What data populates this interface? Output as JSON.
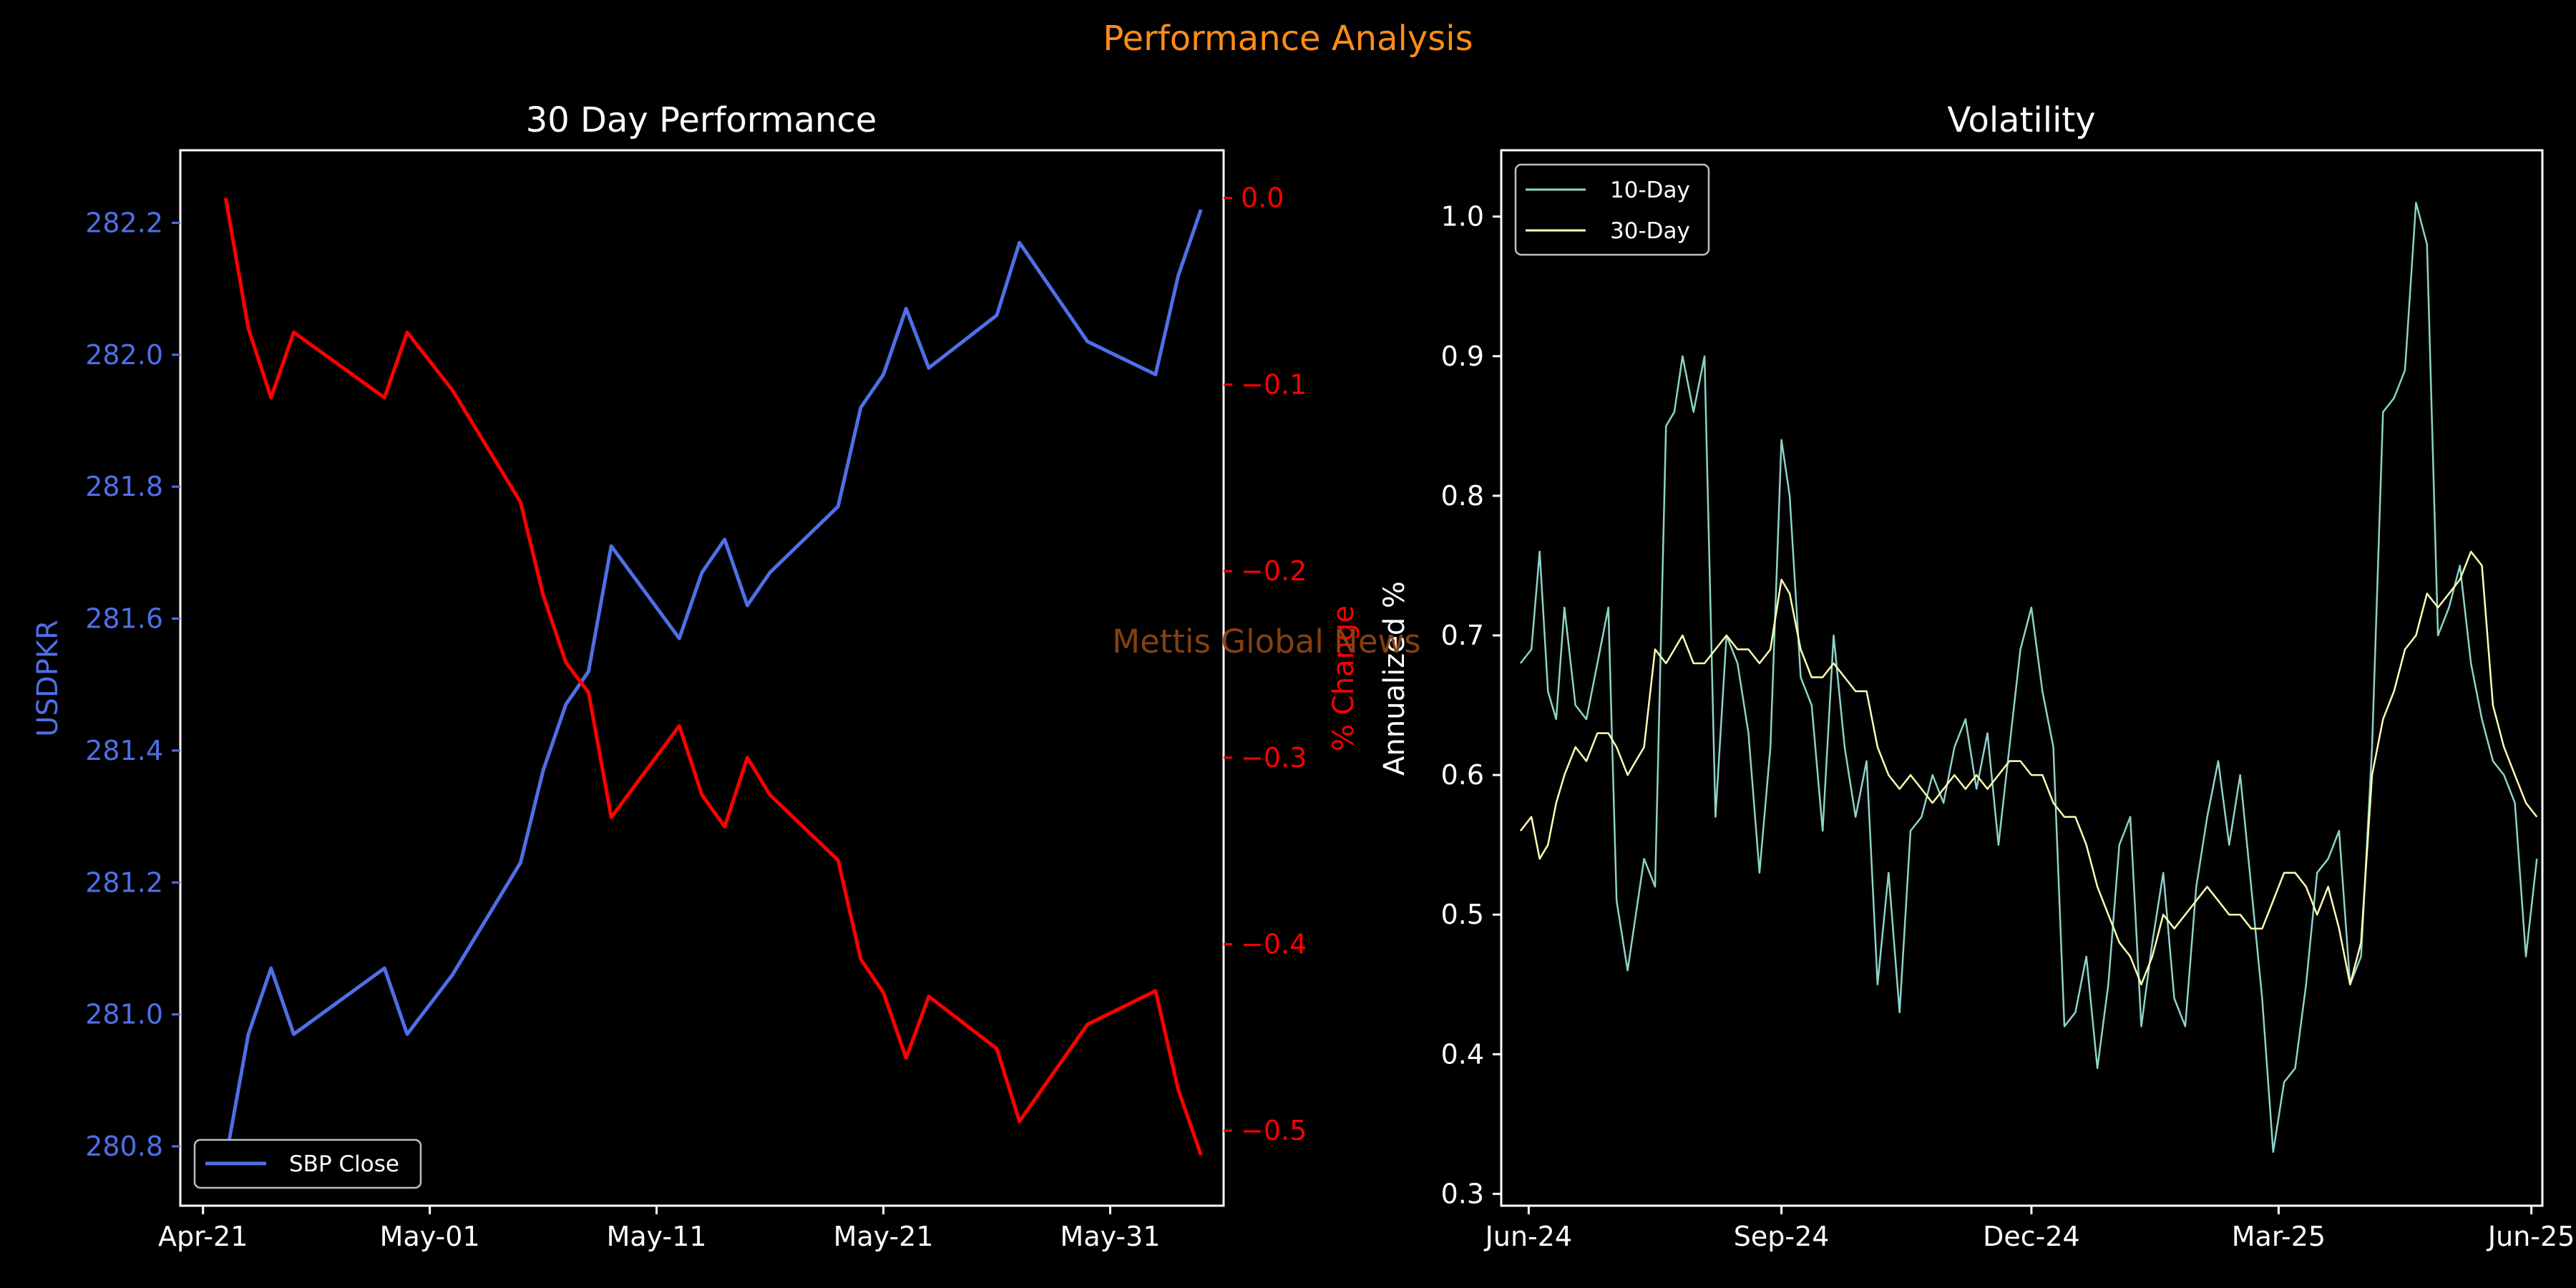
{
  "figure": {
    "title": "Performance Analysis",
    "watermark": "Mettis Global News"
  },
  "colors": {
    "blue": "#4f6fe6",
    "red": "#ff0000",
    "ten_day": "#8dd3c7",
    "thirty_day": "#ffffb3",
    "suptitle": "#ff8c1a",
    "watermark": "#8b4513"
  },
  "chart_data": [
    {
      "type": "line",
      "title": "30 Day Performance",
      "xlabel": "",
      "ylabel": "USDPKR",
      "y2label": "% Change",
      "xlim": [
        "2025-04-20",
        "2025-06-05"
      ],
      "ylim": [
        280.71,
        282.31
      ],
      "y2lim": [
        -0.5402,
        0.0256
      ],
      "x_ticks": [
        "Apr-21",
        "May-01",
        "May-11",
        "May-21",
        "May-31"
      ],
      "x_tick_dates": [
        "2025-04-21",
        "2025-05-01",
        "2025-05-11",
        "2025-05-21",
        "2025-05-31"
      ],
      "y_ticks": [
        "280.8",
        "281.0",
        "281.2",
        "281.4",
        "281.6",
        "281.8",
        "282.0",
        "282.2"
      ],
      "y2_ticks": [
        "0.0",
        "−0.1",
        "−0.2",
        "−0.3",
        "−0.4",
        "−0.5"
      ],
      "legend": {
        "location": "lower left",
        "entries": [
          "SBP Close"
        ]
      },
      "series": [
        {
          "name": "SBP Close",
          "axis": "left",
          "color": "#4f6fe6",
          "x": [
            "2025-04-22",
            "2025-04-23",
            "2025-04-24",
            "2025-04-25",
            "2025-04-29",
            "2025-04-30",
            "2025-05-02",
            "2025-05-05",
            "2025-05-06",
            "2025-05-07",
            "2025-05-08",
            "2025-05-09",
            "2025-05-12",
            "2025-05-13",
            "2025-05-14",
            "2025-05-15",
            "2025-05-16",
            "2025-05-19",
            "2025-05-20",
            "2025-05-21",
            "2025-05-22",
            "2025-05-23",
            "2025-05-26",
            "2025-05-27",
            "2025-05-30",
            "2025-06-02",
            "2025-06-03",
            "2025-06-04"
          ],
          "values": [
            280.78,
            280.97,
            281.07,
            280.97,
            281.07,
            280.97,
            281.06,
            281.23,
            281.37,
            281.47,
            281.52,
            281.71,
            281.57,
            281.67,
            281.72,
            281.62,
            281.67,
            281.77,
            281.92,
            281.97,
            282.07,
            281.98,
            282.06,
            282.17,
            282.02,
            281.97,
            282.12,
            282.22
          ]
        },
        {
          "name": "% Change",
          "axis": "right",
          "color": "#ff0000",
          "x": [
            "2025-04-22",
            "2025-04-23",
            "2025-04-24",
            "2025-04-25",
            "2025-04-29",
            "2025-04-30",
            "2025-05-02",
            "2025-05-05",
            "2025-05-06",
            "2025-05-07",
            "2025-05-08",
            "2025-05-09",
            "2025-05-12",
            "2025-05-13",
            "2025-05-14",
            "2025-05-15",
            "2025-05-16",
            "2025-05-19",
            "2025-05-20",
            "2025-05-21",
            "2025-05-22",
            "2025-05-23",
            "2025-05-26",
            "2025-05-27",
            "2025-05-30",
            "2025-06-02",
            "2025-06-03",
            "2025-06-04"
          ],
          "values": [
            0.0,
            -0.07,
            -0.107,
            -0.072,
            -0.107,
            -0.072,
            -0.103,
            -0.163,
            -0.213,
            -0.249,
            -0.265,
            -0.332,
            -0.283,
            -0.32,
            -0.337,
            -0.3,
            -0.32,
            -0.355,
            -0.408,
            -0.426,
            -0.461,
            -0.428,
            -0.456,
            -0.495,
            -0.443,
            -0.425,
            -0.478,
            -0.513
          ]
        }
      ]
    },
    {
      "type": "line",
      "title": "Volatility",
      "xlabel": "",
      "ylabel": "Annualized %",
      "xlim": [
        "2024-05-22",
        "2025-06-05"
      ],
      "ylim": [
        0.2915,
        1.0475
      ],
      "x_ticks": [
        "Jun-24",
        "Sep-24",
        "Dec-24",
        "Mar-25",
        "Jun-25"
      ],
      "x_tick_dates": [
        "2024-06-01",
        "2024-09-01",
        "2024-12-01",
        "2025-03-01",
        "2025-06-01"
      ],
      "y_ticks": [
        "0.3",
        "0.4",
        "0.5",
        "0.6",
        "0.7",
        "0.8",
        "0.9",
        "1.0"
      ],
      "legend": {
        "location": "upper left",
        "entries": [
          "10-Day",
          "30-Day"
        ]
      },
      "series": [
        {
          "name": "10-Day",
          "color": "#8dd3c7",
          "x": [
            "2024-05-29",
            "2024-06-02",
            "2024-06-05",
            "2024-06-08",
            "2024-06-11",
            "2024-06-14",
            "2024-06-18",
            "2024-06-22",
            "2024-06-26",
            "2024-06-30",
            "2024-07-03",
            "2024-07-07",
            "2024-07-10",
            "2024-07-13",
            "2024-07-17",
            "2024-07-21",
            "2024-07-24",
            "2024-07-27",
            "2024-07-31",
            "2024-08-04",
            "2024-08-08",
            "2024-08-12",
            "2024-08-16",
            "2024-08-20",
            "2024-08-24",
            "2024-08-28",
            "2024-09-01",
            "2024-09-04",
            "2024-09-08",
            "2024-09-12",
            "2024-09-16",
            "2024-09-20",
            "2024-09-24",
            "2024-09-28",
            "2024-10-02",
            "2024-10-06",
            "2024-10-10",
            "2024-10-14",
            "2024-10-18",
            "2024-10-22",
            "2024-10-26",
            "2024-10-30",
            "2024-11-03",
            "2024-11-07",
            "2024-11-11",
            "2024-11-15",
            "2024-11-19",
            "2024-11-23",
            "2024-11-27",
            "2024-12-01",
            "2024-12-05",
            "2024-12-09",
            "2024-12-13",
            "2024-12-17",
            "2024-12-21",
            "2024-12-25",
            "2024-12-29",
            "2025-01-02",
            "2025-01-06",
            "2025-01-10",
            "2025-01-14",
            "2025-01-18",
            "2025-01-22",
            "2025-01-26",
            "2025-01-30",
            "2025-02-03",
            "2025-02-07",
            "2025-02-11",
            "2025-02-15",
            "2025-02-19",
            "2025-02-23",
            "2025-02-27",
            "2025-03-03",
            "2025-03-07",
            "2025-03-11",
            "2025-03-15",
            "2025-03-19",
            "2025-03-23",
            "2025-03-27",
            "2025-03-31",
            "2025-04-04",
            "2025-04-08",
            "2025-04-12",
            "2025-04-16",
            "2025-04-20",
            "2025-04-24",
            "2025-04-28",
            "2025-05-02",
            "2025-05-06",
            "2025-05-10",
            "2025-05-14",
            "2025-05-18",
            "2025-05-22",
            "2025-05-26",
            "2025-05-30",
            "2025-06-03"
          ],
          "values": [
            0.68,
            0.69,
            0.76,
            0.66,
            0.64,
            0.72,
            0.65,
            0.64,
            0.68,
            0.72,
            0.51,
            0.46,
            0.5,
            0.54,
            0.52,
            0.85,
            0.86,
            0.9,
            0.86,
            0.9,
            0.57,
            0.7,
            0.68,
            0.63,
            0.53,
            0.62,
            0.84,
            0.8,
            0.67,
            0.65,
            0.56,
            0.7,
            0.62,
            0.57,
            0.61,
            0.45,
            0.53,
            0.43,
            0.56,
            0.57,
            0.6,
            0.58,
            0.62,
            0.64,
            0.59,
            0.63,
            0.55,
            0.62,
            0.69,
            0.72,
            0.66,
            0.62,
            0.42,
            0.43,
            0.47,
            0.39,
            0.45,
            0.55,
            0.57,
            0.42,
            0.48,
            0.53,
            0.44,
            0.42,
            0.52,
            0.57,
            0.61,
            0.55,
            0.6,
            0.52,
            0.44,
            0.33,
            0.38,
            0.39,
            0.45,
            0.53,
            0.54,
            0.56,
            0.45,
            0.47,
            0.62,
            0.86,
            0.87,
            0.89,
            1.01,
            0.98,
            0.7,
            0.72,
            0.75,
            0.68,
            0.64,
            0.61,
            0.6,
            0.58,
            0.47,
            0.54
          ]
        },
        {
          "name": "30-Day",
          "color": "#ffffb3",
          "x": [
            "2024-05-29",
            "2024-06-02",
            "2024-06-05",
            "2024-06-08",
            "2024-06-11",
            "2024-06-14",
            "2024-06-18",
            "2024-06-22",
            "2024-06-26",
            "2024-06-30",
            "2024-07-03",
            "2024-07-07",
            "2024-07-10",
            "2024-07-13",
            "2024-07-17",
            "2024-07-21",
            "2024-07-24",
            "2024-07-27",
            "2024-07-31",
            "2024-08-04",
            "2024-08-08",
            "2024-08-12",
            "2024-08-16",
            "2024-08-20",
            "2024-08-24",
            "2024-08-28",
            "2024-09-01",
            "2024-09-04",
            "2024-09-08",
            "2024-09-12",
            "2024-09-16",
            "2024-09-20",
            "2024-09-24",
            "2024-09-28",
            "2024-10-02",
            "2024-10-06",
            "2024-10-10",
            "2024-10-14",
            "2024-10-18",
            "2024-10-22",
            "2024-10-26",
            "2024-10-30",
            "2024-11-03",
            "2024-11-07",
            "2024-11-11",
            "2024-11-15",
            "2024-11-19",
            "2024-11-23",
            "2024-11-27",
            "2024-12-01",
            "2024-12-05",
            "2024-12-09",
            "2024-12-13",
            "2024-12-17",
            "2024-12-21",
            "2024-12-25",
            "2024-12-29",
            "2025-01-02",
            "2025-01-06",
            "2025-01-10",
            "2025-01-14",
            "2025-01-18",
            "2025-01-22",
            "2025-01-26",
            "2025-01-30",
            "2025-02-03",
            "2025-02-07",
            "2025-02-11",
            "2025-02-15",
            "2025-02-19",
            "2025-02-23",
            "2025-02-27",
            "2025-03-03",
            "2025-03-07",
            "2025-03-11",
            "2025-03-15",
            "2025-03-19",
            "2025-03-23",
            "2025-03-27",
            "2025-03-31",
            "2025-04-04",
            "2025-04-08",
            "2025-04-12",
            "2025-04-16",
            "2025-04-20",
            "2025-04-24",
            "2025-04-28",
            "2025-05-02",
            "2025-05-06",
            "2025-05-10",
            "2025-05-14",
            "2025-05-18",
            "2025-05-22",
            "2025-05-26",
            "2025-05-30",
            "2025-06-03"
          ],
          "values": [
            0.56,
            0.57,
            0.54,
            0.55,
            0.58,
            0.6,
            0.62,
            0.61,
            0.63,
            0.63,
            0.62,
            0.6,
            0.61,
            0.62,
            0.69,
            0.68,
            0.69,
            0.7,
            0.68,
            0.68,
            0.69,
            0.7,
            0.69,
            0.69,
            0.68,
            0.69,
            0.74,
            0.73,
            0.69,
            0.67,
            0.67,
            0.68,
            0.67,
            0.66,
            0.66,
            0.62,
            0.6,
            0.59,
            0.6,
            0.59,
            0.58,
            0.59,
            0.6,
            0.59,
            0.6,
            0.59,
            0.6,
            0.61,
            0.61,
            0.6,
            0.6,
            0.58,
            0.57,
            0.57,
            0.55,
            0.52,
            0.5,
            0.48,
            0.47,
            0.45,
            0.47,
            0.5,
            0.49,
            0.5,
            0.51,
            0.52,
            0.51,
            0.5,
            0.5,
            0.49,
            0.49,
            0.51,
            0.53,
            0.53,
            0.52,
            0.5,
            0.52,
            0.49,
            0.45,
            0.48,
            0.6,
            0.64,
            0.66,
            0.69,
            0.7,
            0.73,
            0.72,
            0.73,
            0.74,
            0.76,
            0.75,
            0.65,
            0.62,
            0.6,
            0.58,
            0.57
          ]
        }
      ]
    }
  ]
}
